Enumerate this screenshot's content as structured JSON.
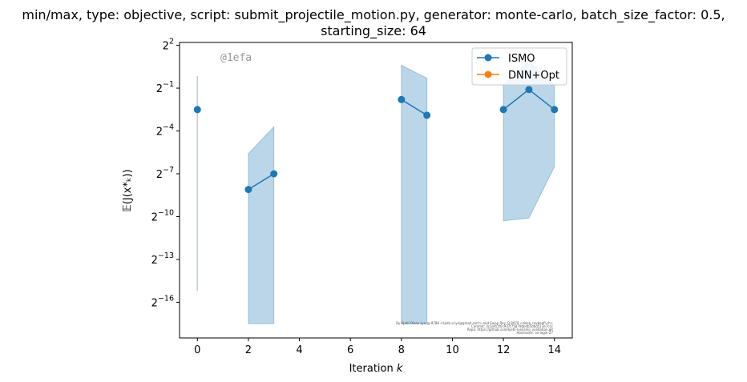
{
  "chart_data": {
    "type": "line",
    "title": [
      "min/max, type: objective, script: submit_projectile_motion.py, generator: monte-carlo, batch_size_factor: 0.5,",
      "starting_size: 64"
    ],
    "xlabel": "Iteration",
    "xlabel_var": "k",
    "ylabel": "𝔼(J(x*ₖ))",
    "y_scale": "log2",
    "xlim": [
      -0.7,
      14.7
    ],
    "ylim_log2": [
      -18.5,
      2.2
    ],
    "x_ticks": [
      0,
      2,
      4,
      6,
      8,
      10,
      12,
      14
    ],
    "y_ticks": [
      {
        "base": "2",
        "exp": "2",
        "value": 2
      },
      {
        "base": "2",
        "exp": "−1",
        "value": -1
      },
      {
        "base": "2",
        "exp": "−4",
        "value": -4
      },
      {
        "base": "2",
        "exp": "−7",
        "value": -7
      },
      {
        "base": "2",
        "exp": "−10",
        "value": -10
      },
      {
        "base": "2",
        "exp": "−13",
        "value": -13
      },
      {
        "base": "2",
        "exp": "−16",
        "value": -16
      }
    ],
    "legend_position": "top-right",
    "series": [
      {
        "name": "ISMO",
        "color": "#1f77b4",
        "segments": [
          {
            "x": [
              0
            ],
            "log2_mean": [
              -2.5
            ],
            "log2_min": [
              -15.2
            ],
            "log2_max": [
              -0.15
            ]
          },
          {
            "x": [
              2,
              3
            ],
            "log2_mean": [
              -8.1,
              -7.0
            ],
            "log2_min": [
              -17.5,
              -17.5
            ],
            "log2_max": [
              -5.6,
              -3.7
            ]
          },
          {
            "x": [
              8,
              9
            ],
            "log2_mean": [
              -1.8,
              -2.9
            ],
            "log2_min": [
              -17.5,
              -17.5
            ],
            "log2_max": [
              0.6,
              -0.3
            ]
          },
          {
            "x": [
              12,
              13,
              14
            ],
            "log2_mean": [
              -2.5,
              -1.1,
              -2.5
            ],
            "log2_min": [
              -10.3,
              -10.1,
              -6.5
            ],
            "log2_max": [
              -0.8,
              0.9,
              -0.8
            ]
          }
        ]
      },
      {
        "name": "DNN+Opt",
        "color": "#ff7f0e",
        "segments": []
      }
    ],
    "watermark": "@1efa",
    "footer": [
      "By Kjetil Olsen Lye @ 8788 <kjetil.o.lye@gmail.com> and Ewop Rey_Q 8978 <deep_raybegfl.ch>",
      "Commit: 3c1ef41f0c937f75879bb4b5dbd513e7ccc",
      "Repo: https://github.com/kjetil-lye/ismo_validation.git",
      "Hostname: ex-login-27"
    ]
  }
}
